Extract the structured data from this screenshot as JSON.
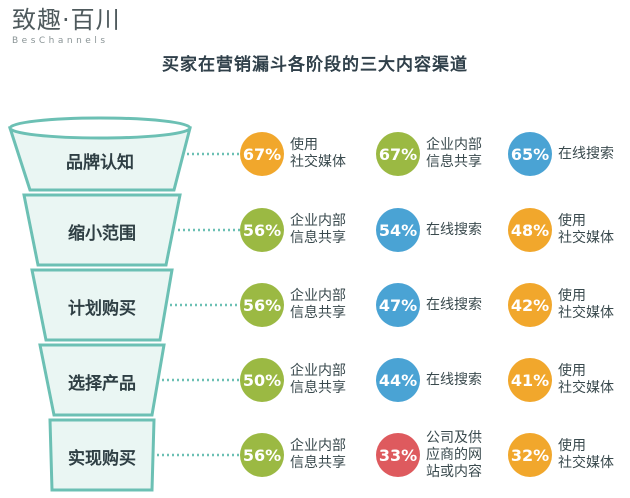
{
  "brand": {
    "name": "致趣·百川",
    "sub": "BesChannels"
  },
  "title": "买家在营销漏斗各阶段的三大内容渠道",
  "colors": {
    "orange": "#f1a72c",
    "green": "#9bb943",
    "blue": "#4aa3d4",
    "red": "#de5a5e",
    "frame": "#6cc0b4",
    "fill": "#eaf6f3"
  },
  "stages": [
    {
      "label": "品牌认知",
      "channels": [
        {
          "value": "67%",
          "text": "使用\n社交媒体",
          "color": "orange"
        },
        {
          "value": "67%",
          "text": "企业内部\n信息共享",
          "color": "green"
        },
        {
          "value": "65%",
          "text": "在线搜索",
          "color": "blue"
        }
      ]
    },
    {
      "label": "缩小范围",
      "channels": [
        {
          "value": "56%",
          "text": "企业内部\n信息共享",
          "color": "green"
        },
        {
          "value": "54%",
          "text": "在线搜索",
          "color": "blue"
        },
        {
          "value": "48%",
          "text": "使用\n社交媒体",
          "color": "orange"
        }
      ]
    },
    {
      "label": "计划购买",
      "channels": [
        {
          "value": "56%",
          "text": "企业内部\n信息共享",
          "color": "green"
        },
        {
          "value": "47%",
          "text": "在线搜索",
          "color": "blue"
        },
        {
          "value": "42%",
          "text": "使用\n社交媒体",
          "color": "orange"
        }
      ]
    },
    {
      "label": "选择产品",
      "channels": [
        {
          "value": "50%",
          "text": "企业内部\n信息共享",
          "color": "green"
        },
        {
          "value": "44%",
          "text": "在线搜索",
          "color": "blue"
        },
        {
          "value": "41%",
          "text": "使用\n社交媒体",
          "color": "orange"
        }
      ]
    },
    {
      "label": "实现购买",
      "channels": [
        {
          "value": "56%",
          "text": "企业内部\n信息共享",
          "color": "green"
        },
        {
          "value": "33%",
          "text": "公司及供\n应商的网\n站或内容",
          "color": "red"
        },
        {
          "value": "32%",
          "text": "使用\n社交媒体",
          "color": "orange"
        }
      ]
    }
  ]
}
